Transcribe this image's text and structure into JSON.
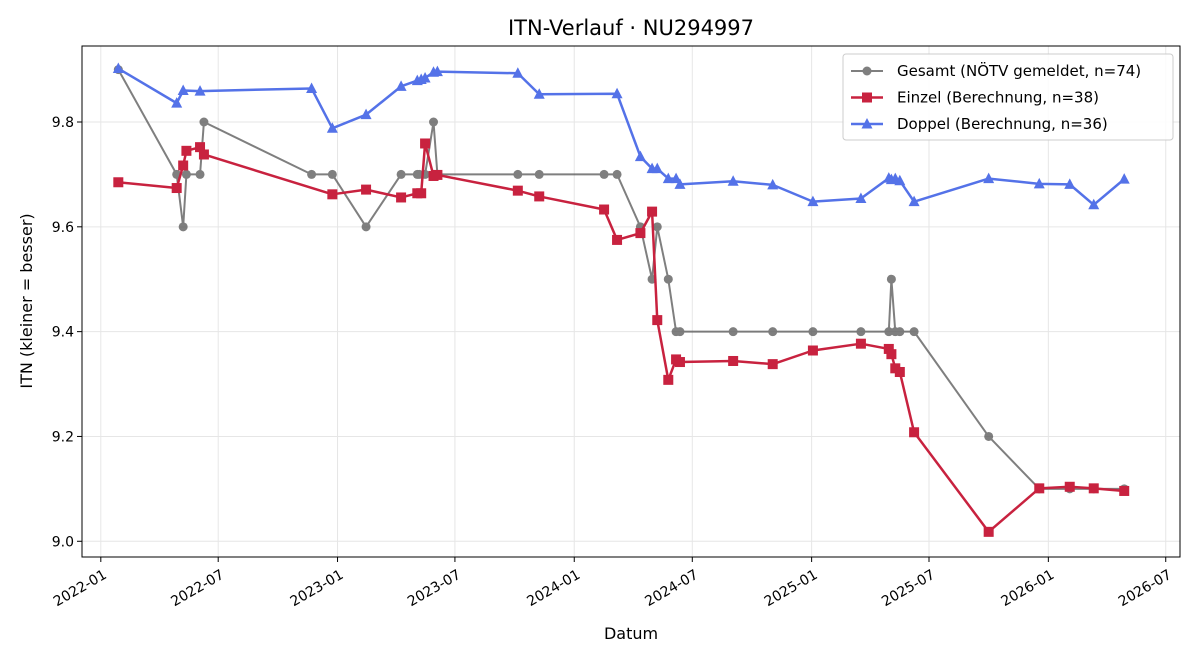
{
  "chart_data": {
    "type": "line",
    "title": "ITN-Verlauf · NU294997",
    "xlabel": "Datum",
    "ylabel": "ITN  (kleiner = besser)",
    "xlim": [
      "2021-12-03",
      "2026-07-23"
    ],
    "ylim": [
      8.97,
      9.945
    ],
    "x_ticks": [
      "2022-01",
      "2022-07",
      "2023-01",
      "2023-07",
      "2024-01",
      "2024-07",
      "2025-01",
      "2025-07",
      "2026-01",
      "2026-07"
    ],
    "x_tick_dates": [
      "2022-01-01",
      "2022-07-01",
      "2023-01-01",
      "2023-07-01",
      "2024-01-01",
      "2024-07-01",
      "2025-01-01",
      "2025-07-01",
      "2026-01-01",
      "2026-07-01"
    ],
    "y_ticks": [
      "9.0",
      "9.2",
      "9.4",
      "9.6",
      "9.8"
    ],
    "y_tick_values": [
      9.0,
      9.2,
      9.4,
      9.6,
      9.8
    ],
    "grid": true,
    "legend_position": "top-right",
    "series": [
      {
        "name": "Gesamt (NÖTV gemeldet, n=74)",
        "color": "#555555",
        "marker": "circle",
        "points": [
          [
            "2022-01-28",
            9.9
          ],
          [
            "2022-04-28",
            9.7
          ],
          [
            "2022-05-08",
            9.6
          ],
          [
            "2022-05-13",
            9.7
          ],
          [
            "2022-06-03",
            9.7
          ],
          [
            "2022-06-09",
            9.8
          ],
          [
            "2022-11-22",
            9.7
          ],
          [
            "2022-12-24",
            9.7
          ],
          [
            "2023-02-14",
            9.6
          ],
          [
            "2023-04-09",
            9.7
          ],
          [
            "2023-05-04",
            9.7
          ],
          [
            "2023-05-07",
            9.7
          ],
          [
            "2023-05-16",
            9.7
          ],
          [
            "2023-05-29",
            9.8
          ],
          [
            "2023-06-04",
            9.7
          ],
          [
            "2023-10-06",
            9.7
          ],
          [
            "2023-11-08",
            9.7
          ],
          [
            "2024-02-16",
            9.7
          ],
          [
            "2024-03-07",
            9.7
          ],
          [
            "2024-04-12",
            9.6
          ],
          [
            "2024-04-30",
            9.5
          ],
          [
            "2024-05-08",
            9.6
          ],
          [
            "2024-05-25",
            9.5
          ],
          [
            "2024-06-06",
            9.4
          ],
          [
            "2024-06-12",
            9.4
          ],
          [
            "2024-09-02",
            9.4
          ],
          [
            "2024-11-02",
            9.4
          ],
          [
            "2025-01-03",
            9.4
          ],
          [
            "2025-03-18",
            9.4
          ],
          [
            "2025-04-30",
            9.4
          ],
          [
            "2025-05-04",
            9.5
          ],
          [
            "2025-05-10",
            9.4
          ],
          [
            "2025-05-17",
            9.4
          ],
          [
            "2025-06-08",
            9.4
          ],
          [
            "2025-10-01",
            9.2
          ],
          [
            "2025-12-18",
            9.1
          ],
          [
            "2026-02-03",
            9.1
          ],
          [
            "2026-03-12",
            9.1
          ],
          [
            "2026-04-28",
            9.1
          ]
        ]
      },
      {
        "name": "Einzel (Berechnung, n=38)",
        "color": "#c8223f",
        "marker": "square",
        "points": [
          [
            "2022-01-28",
            9.685
          ],
          [
            "2022-04-28",
            9.674
          ],
          [
            "2022-05-08",
            9.717
          ],
          [
            "2022-05-13",
            9.745
          ],
          [
            "2022-06-03",
            9.752
          ],
          [
            "2022-06-09",
            9.738
          ],
          [
            "2022-12-24",
            9.662
          ],
          [
            "2023-02-14",
            9.671
          ],
          [
            "2023-04-09",
            9.656
          ],
          [
            "2023-05-04",
            9.664
          ],
          [
            "2023-05-10",
            9.664
          ],
          [
            "2023-05-16",
            9.759
          ],
          [
            "2023-05-29",
            9.697
          ],
          [
            "2023-06-04",
            9.699
          ],
          [
            "2023-10-06",
            9.669
          ],
          [
            "2023-11-08",
            9.658
          ],
          [
            "2024-02-16",
            9.633
          ],
          [
            "2024-03-07",
            9.575
          ],
          [
            "2024-04-12",
            9.588
          ],
          [
            "2024-04-30",
            9.629
          ],
          [
            "2024-05-08",
            9.422
          ],
          [
            "2024-05-25",
            9.308
          ],
          [
            "2024-06-06",
            9.347
          ],
          [
            "2024-06-12",
            9.342
          ],
          [
            "2024-09-02",
            9.344
          ],
          [
            "2024-11-02",
            9.338
          ],
          [
            "2025-01-03",
            9.364
          ],
          [
            "2025-03-18",
            9.377
          ],
          [
            "2025-04-30",
            9.367
          ],
          [
            "2025-05-04",
            9.357
          ],
          [
            "2025-05-10",
            9.33
          ],
          [
            "2025-05-17",
            9.323
          ],
          [
            "2025-06-08",
            9.208
          ],
          [
            "2025-10-01",
            9.018
          ],
          [
            "2025-12-18",
            9.101
          ],
          [
            "2026-02-03",
            9.104
          ],
          [
            "2026-03-12",
            9.101
          ],
          [
            "2026-04-28",
            9.096
          ]
        ]
      },
      {
        "name": "Doppel (Berechnung, n=36)",
        "color": "#5472e8",
        "marker": "triangle",
        "points": [
          [
            "2022-01-28",
            9.902
          ],
          [
            "2022-04-28",
            9.836
          ],
          [
            "2022-05-08",
            9.86
          ],
          [
            "2022-06-03",
            9.859
          ],
          [
            "2022-11-22",
            9.864
          ],
          [
            "2022-12-24",
            9.788
          ],
          [
            "2023-02-14",
            9.814
          ],
          [
            "2023-04-09",
            9.868
          ],
          [
            "2023-05-04",
            9.879
          ],
          [
            "2023-05-10",
            9.881
          ],
          [
            "2023-05-16",
            9.884
          ],
          [
            "2023-05-29",
            9.895
          ],
          [
            "2023-06-04",
            9.896
          ],
          [
            "2023-10-06",
            9.893
          ],
          [
            "2023-11-08",
            9.853
          ],
          [
            "2024-03-07",
            9.854
          ],
          [
            "2024-04-12",
            9.734
          ],
          [
            "2024-04-30",
            9.711
          ],
          [
            "2024-05-08",
            9.711
          ],
          [
            "2024-05-25",
            9.692
          ],
          [
            "2024-06-06",
            9.692
          ],
          [
            "2024-06-12",
            9.681
          ],
          [
            "2024-09-02",
            9.687
          ],
          [
            "2024-11-02",
            9.68
          ],
          [
            "2025-01-03",
            9.648
          ],
          [
            "2025-03-18",
            9.654
          ],
          [
            "2025-04-30",
            9.693
          ],
          [
            "2025-05-04",
            9.69
          ],
          [
            "2025-05-10",
            9.692
          ],
          [
            "2025-05-17",
            9.688
          ],
          [
            "2025-06-08",
            9.648
          ],
          [
            "2025-10-01",
            9.692
          ],
          [
            "2025-12-18",
            9.682
          ],
          [
            "2026-02-03",
            9.681
          ],
          [
            "2026-03-12",
            9.642
          ],
          [
            "2026-04-28",
            9.691
          ]
        ]
      }
    ]
  }
}
